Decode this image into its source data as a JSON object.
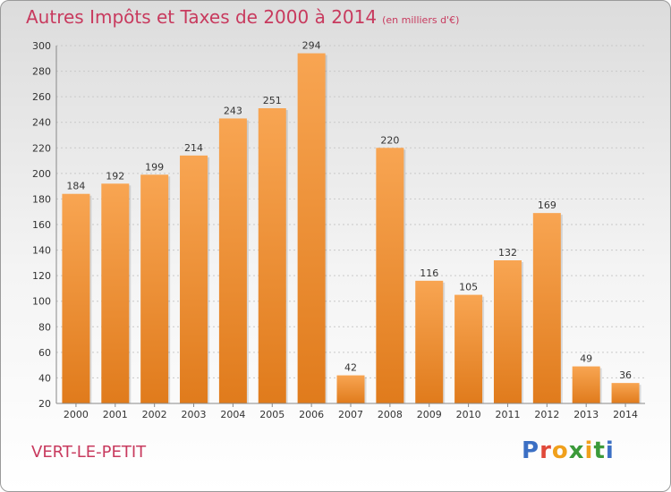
{
  "header": {
    "title": "Autres Impôts et Taxes de 2000 à 2014",
    "unit": "(en milliers d'€)"
  },
  "footer": {
    "commune": "VERT-LE-PETIT",
    "logo_letters": [
      "P",
      "r",
      "o",
      "x",
      "i",
      "t",
      "i"
    ]
  },
  "colors": {
    "title": "#c83a5e",
    "bar_top": "#f8a552",
    "bar_bottom": "#e07b1c",
    "logo": [
      "#3b6fc4",
      "#e0493a",
      "#f0a01c",
      "#3b9a3a",
      "#f0a01c",
      "#3b9a3a",
      "#3b6fc4"
    ]
  },
  "chart_data": {
    "type": "bar",
    "categories": [
      "2000",
      "2001",
      "2002",
      "2003",
      "2004",
      "2005",
      "2006",
      "2007",
      "2008",
      "2009",
      "2010",
      "2011",
      "2012",
      "2013",
      "2014"
    ],
    "values": [
      184,
      192,
      199,
      214,
      243,
      251,
      294,
      42,
      220,
      116,
      105,
      132,
      169,
      49,
      36
    ],
    "ylim": [
      20,
      300
    ],
    "yticks": [
      20,
      40,
      60,
      80,
      100,
      120,
      140,
      160,
      180,
      200,
      220,
      240,
      260,
      280,
      300
    ],
    "grid": true
  }
}
